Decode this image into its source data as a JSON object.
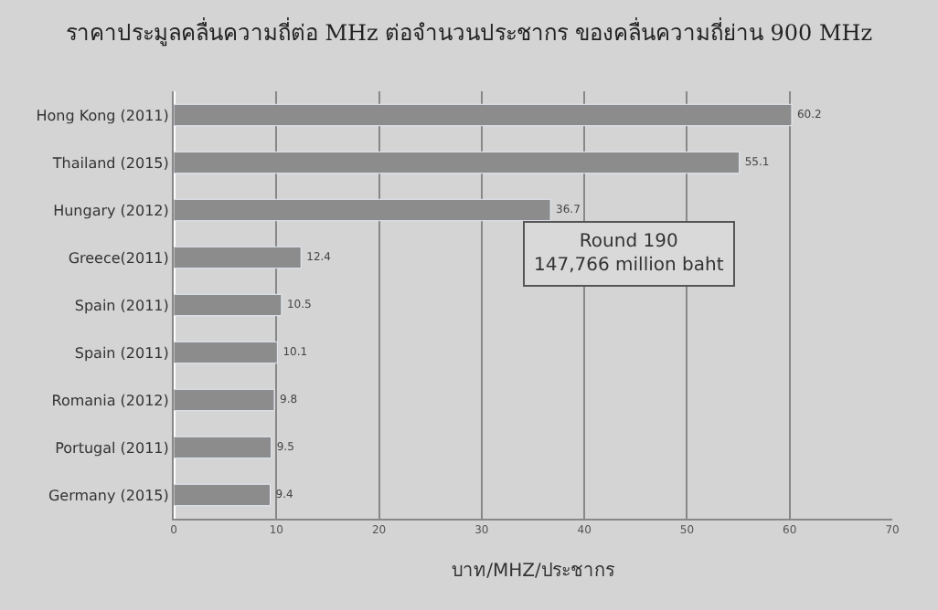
{
  "chart_data": {
    "type": "bar",
    "orientation": "horizontal",
    "title": "ราคาประมูลคลื่นความถี่ต่อ MHz ต่อจำนวนประชากร ของคลื่นความถี่ย่าน 900 MHz",
    "xlabel": "บาท/MHZ/ประชากร",
    "categories": [
      "Hong Kong (2011)",
      "Thailand (2015)",
      "Hungary (2012)",
      "Greece(2011)",
      "Spain (2011)",
      "Spain (2011)",
      "Romania (2012)",
      "Portugal (2011)",
      "Germany (2015)"
    ],
    "values": [
      60.2,
      55.1,
      36.7,
      12.4,
      10.5,
      10.1,
      9.8,
      9.5,
      9.4
    ],
    "color": "#8c8c8c",
    "xlim": [
      0,
      70
    ],
    "xticks": [
      0,
      10,
      20,
      30,
      40,
      50,
      60,
      70
    ],
    "grid": "x",
    "data_labels": true,
    "annotations": [
      "Round 190\n147,766 million baht"
    ]
  }
}
